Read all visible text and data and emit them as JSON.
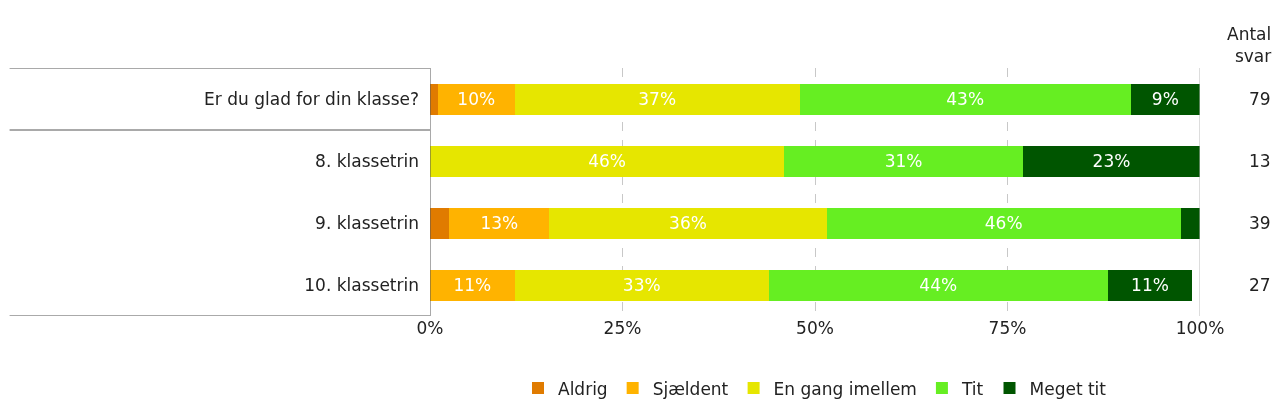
{
  "chart_data": {
    "type": "bar",
    "orientation": "horizontal",
    "stacked": true,
    "categories": [
      "Er du glad for din klasse?",
      "8. klassetrin",
      "9. klassetrin",
      "10. klassetrin"
    ],
    "series": [
      {
        "name": "Aldrig",
        "color": "#e07b00",
        "values": [
          1,
          0,
          2.5,
          0
        ],
        "value_labels": [
          null,
          null,
          null,
          null
        ]
      },
      {
        "name": "Sjældent",
        "color": "#ffb300",
        "values": [
          10,
          0,
          13,
          11
        ],
        "value_labels": [
          "10%",
          null,
          "13%",
          "11%"
        ]
      },
      {
        "name": "En gang imellem",
        "color": "#e6e600",
        "values": [
          37,
          46,
          36,
          33
        ],
        "value_labels": [
          "37%",
          "46%",
          "36%",
          "33%"
        ]
      },
      {
        "name": "Tit",
        "color": "#66ee22",
        "values": [
          43,
          31,
          46,
          44
        ],
        "value_labels": [
          "43%",
          "31%",
          "46%",
          "44%"
        ]
      },
      {
        "name": "Meget tit",
        "color": "#005500",
        "values": [
          9,
          23,
          2.5,
          11
        ],
        "value_labels": [
          "9%",
          "23%",
          null,
          "11%"
        ]
      }
    ],
    "xlim": [
      0,
      100
    ],
    "xticks": [
      {
        "value": 0,
        "label": "0%"
      },
      {
        "value": 25,
        "label": "25%"
      },
      {
        "value": 50,
        "label": "50%"
      },
      {
        "value": 75,
        "label": "75%"
      },
      {
        "value": 100,
        "label": "100%"
      }
    ],
    "grid": "x",
    "legend": "bottom",
    "annotations": [
      "Antal\nsvar",
      "79",
      "13",
      "39",
      "27"
    ]
  }
}
